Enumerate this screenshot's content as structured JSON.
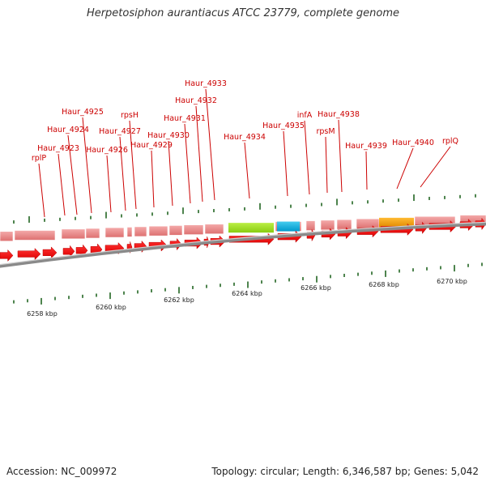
{
  "title": "Herpetosiphon aurantiacus ATCC 23779, complete genome",
  "footer": {
    "accession": "Accession: NC_009972",
    "summary": "Topology: circular; Length: 6,346,587 bp; Genes: 5,042"
  },
  "colors": {
    "gene_label": "#cc0000",
    "leader_line": "#cc0000",
    "cds_arrow": "#ee0000",
    "gene_block": "#e88080",
    "highlight_green": "#99dd22",
    "highlight_blue": "#11aadd",
    "highlight_orange": "#ee9900",
    "backbone": "#888888",
    "tick": "#226622"
  },
  "scale_labels": [
    "6258 kbp",
    "6260 kbp",
    "6262 kbp",
    "6264 kbp",
    "6266 kbp",
    "6268 kbp",
    "6270 kbp"
  ],
  "gene_labels": [
    "rplP",
    "Haur_4923",
    "Haur_4924",
    "Haur_4925",
    "Haur_4926",
    "Haur_4927",
    "rpsH",
    "Haur_4929",
    "Haur_4930",
    "Haur_4931",
    "Haur_4932",
    "Haur_4933",
    "Haur_4934",
    "Haur_4935",
    "infA",
    "rpsM",
    "Haur_4938",
    "Haur_4939",
    "Haur_4940",
    "rplQ"
  ]
}
